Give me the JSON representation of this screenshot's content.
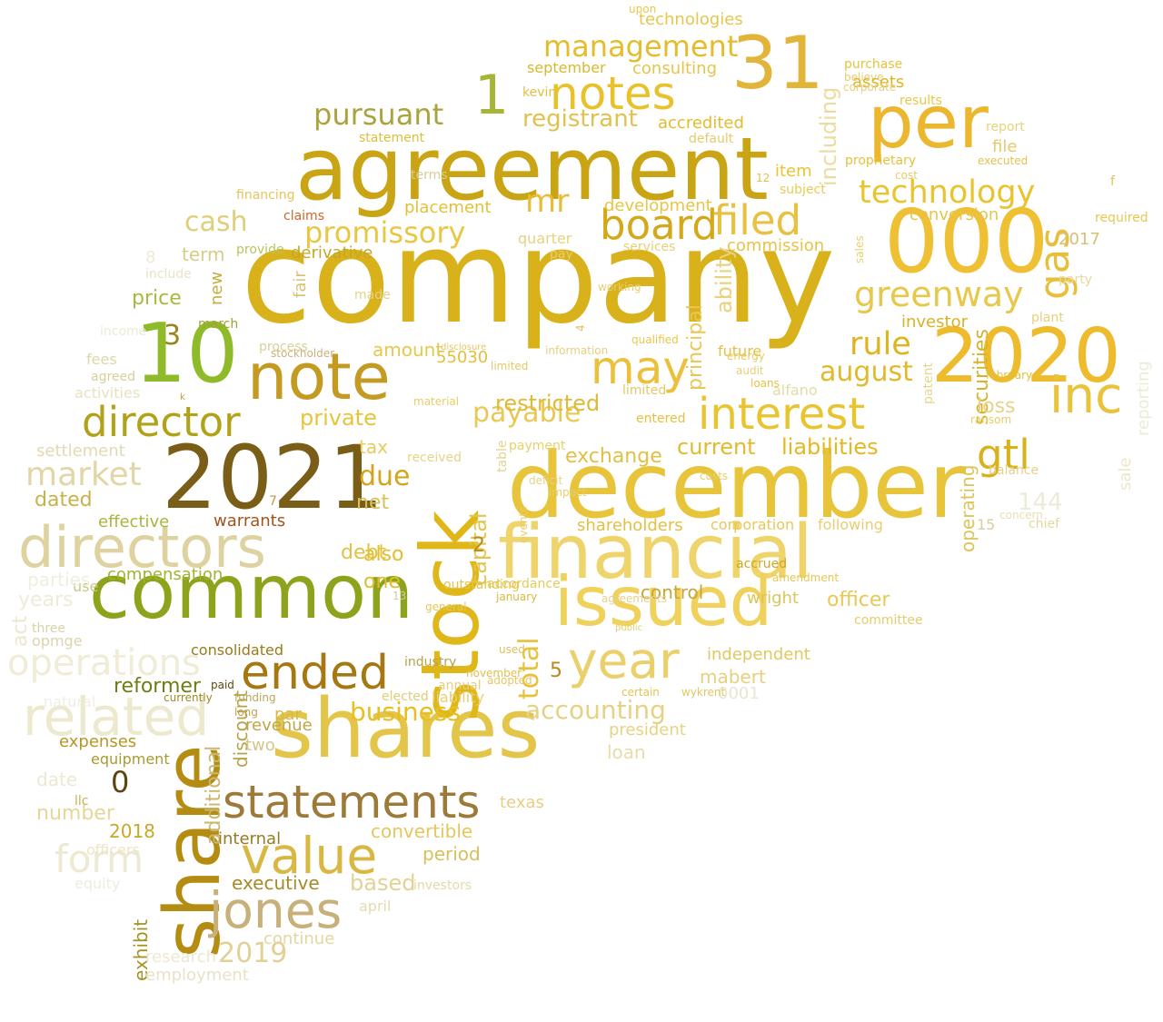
{
  "words": [
    {
      "text": "company",
      "color": "#d9b11a"
    },
    {
      "text": "agreement",
      "color": "#c9a414"
    },
    {
      "text": "december",
      "color": "#e8c43a"
    },
    {
      "text": "shares",
      "color": "#e3c54a"
    },
    {
      "text": "stock",
      "color": "#e0b719"
    },
    {
      "text": "financial",
      "color": "#efd36b"
    },
    {
      "text": "2021",
      "color": "#7a5d16"
    },
    {
      "text": "000",
      "color": "#efc033"
    },
    {
      "text": "common",
      "color": "#8ea31c"
    },
    {
      "text": "2020",
      "color": "#eebb2c"
    },
    {
      "text": "per",
      "color": "#ebb72f"
    },
    {
      "text": "issued",
      "color": "#efd15c"
    },
    {
      "text": "note",
      "color": "#c39a22"
    },
    {
      "text": "share",
      "color": "#b58c12"
    },
    {
      "text": "10",
      "color": "#8fbb2a"
    },
    {
      "text": "31",
      "color": "#e3b43a"
    },
    {
      "text": "directors",
      "color": "#ded3a0"
    },
    {
      "text": "related",
      "color": "#ece9cf"
    },
    {
      "text": "statements",
      "color": "#9c7a3a"
    },
    {
      "text": "ended",
      "color": "#a57812"
    },
    {
      "text": "notes",
      "color": "#e8c22b"
    },
    {
      "text": "board",
      "color": "#d3a91a"
    },
    {
      "text": "filed",
      "color": "#e8c140"
    },
    {
      "text": "year",
      "color": "#ead06a"
    },
    {
      "text": "may",
      "color": "#ebc13c"
    },
    {
      "text": "inc",
      "color": "#e8c33c"
    },
    {
      "text": "value",
      "color": "#d8b842"
    },
    {
      "text": "jones",
      "color": "#c7b07a"
    },
    {
      "text": "interest",
      "color": "#e8c430"
    },
    {
      "text": "director",
      "color": "#b1a219"
    },
    {
      "text": "technology",
      "color": "#e8c530"
    },
    {
      "text": "gas",
      "color": "#e8bf3a"
    },
    {
      "text": "gtl",
      "color": "#d8b21a"
    },
    {
      "text": "greenway",
      "color": "#e8c84a"
    },
    {
      "text": "operations",
      "color": "#f0ecd8"
    },
    {
      "text": "form",
      "color": "#ede9d3"
    },
    {
      "text": "market",
      "color": "#e2d6a7"
    },
    {
      "text": "promissory",
      "color": "#e8c743"
    },
    {
      "text": "management",
      "color": "#e4bd2c"
    },
    {
      "text": "pursuant",
      "color": "#a9a43e"
    },
    {
      "text": "registrant",
      "color": "#e3c14d"
    },
    {
      "text": "cash",
      "color": "#e0cf7a"
    },
    {
      "text": "mr",
      "color": "#e9bc36"
    },
    {
      "text": "rule",
      "color": "#e0b41f"
    },
    {
      "text": "august",
      "color": "#e1ba2a"
    },
    {
      "text": "payable",
      "color": "#e8c955"
    },
    {
      "text": "accounting",
      "color": "#e6d286"
    },
    {
      "text": "business",
      "color": "#e8bf1e"
    },
    {
      "text": "total",
      "color": "#e8c13a"
    },
    {
      "text": "capital",
      "color": "#e2c650"
    },
    {
      "text": "2019",
      "color": "#e2d196"
    },
    {
      "text": "0",
      "color": "#5a4410"
    },
    {
      "text": "1",
      "color": "#a6b634"
    },
    {
      "text": "3",
      "color": "#9a8518"
    },
    {
      "text": "2",
      "color": "#c08a16"
    },
    {
      "text": "5",
      "color": "#b88a1b"
    },
    {
      "text": "7",
      "color": "#c09a48"
    },
    {
      "text": "8",
      "color": "#eeebd8"
    },
    {
      "text": "13",
      "color": "#d4cc9e"
    },
    {
      "text": "15",
      "color": "#d8cf9a"
    },
    {
      "text": "144",
      "color": "#ecebd8"
    },
    {
      "text": "2017",
      "color": "#d5c07a"
    },
    {
      "text": "2018",
      "color": "#c8a82a"
    },
    {
      "text": "55030",
      "color": "#e3bf3b"
    },
    {
      "text": "0001",
      "color": "#e8e6d2"
    },
    {
      "text": "including",
      "color": "#ecdca0"
    },
    {
      "text": "reporting",
      "color": "#ecebd6"
    },
    {
      "text": "securities",
      "color": "#d6b32c"
    },
    {
      "text": "operating",
      "color": "#dcc45a"
    },
    {
      "text": "ability",
      "color": "#e8d27a"
    },
    {
      "text": "principal",
      "color": "#e8c752"
    },
    {
      "text": "additional",
      "color": "#c9b76e"
    },
    {
      "text": "exhibit",
      "color": "#a39322"
    },
    {
      "text": "sale",
      "color": "#ece7ca"
    },
    {
      "text": "loss",
      "color": "#e7d28e"
    },
    {
      "text": "liabilities",
      "color": "#e3b823"
    },
    {
      "text": "current",
      "color": "#e3ba2c"
    },
    {
      "text": "private",
      "color": "#e8c43a"
    },
    {
      "text": "restricted",
      "color": "#e0ba36"
    },
    {
      "text": "amount",
      "color": "#e8c84b"
    },
    {
      "text": "due",
      "color": "#d4a51c"
    },
    {
      "text": "debt",
      "color": "#e2c245"
    },
    {
      "text": "net",
      "color": "#d9c15a"
    },
    {
      "text": "tax",
      "color": "#e8cb5e"
    },
    {
      "text": "also",
      "color": "#e2bf2c"
    },
    {
      "text": "one",
      "color": "#e1bd2c"
    },
    {
      "text": "exchange",
      "color": "#e2c044"
    },
    {
      "text": "shareholders",
      "color": "#e2bf45"
    },
    {
      "text": "corporation",
      "color": "#e9c75a"
    },
    {
      "text": "following",
      "color": "#e8cd72"
    },
    {
      "text": "officer",
      "color": "#e8c952"
    },
    {
      "text": "control",
      "color": "#c8a53a"
    },
    {
      "text": "wright",
      "color": "#dcc45a"
    },
    {
      "text": "independent",
      "color": "#e2c860"
    },
    {
      "text": "mabert",
      "color": "#e7d07e"
    },
    {
      "text": "president",
      "color": "#e8d382"
    },
    {
      "text": "loan",
      "color": "#e8dcaa"
    },
    {
      "text": "texas",
      "color": "#e6cf84"
    },
    {
      "text": "convertible",
      "color": "#e6c65c"
    },
    {
      "text": "period",
      "color": "#d8bf5c"
    },
    {
      "text": "based",
      "color": "#e3d295"
    },
    {
      "text": "executive",
      "color": "#a58a2a"
    },
    {
      "text": "internal",
      "color": "#9a7a22"
    },
    {
      "text": "continue",
      "color": "#e4d69e"
    },
    {
      "text": "employment",
      "color": "#e7e2c8"
    },
    {
      "text": "research",
      "color": "#ede8d2"
    },
    {
      "text": "april",
      "color": "#e4dcae"
    },
    {
      "text": "investors",
      "color": "#e4d9a8"
    },
    {
      "text": "elected",
      "color": "#e2cc76"
    },
    {
      "text": "liability",
      "color": "#e6cf74"
    },
    {
      "text": "par",
      "color": "#d9b84a"
    },
    {
      "text": "revenue",
      "color": "#c0a648"
    },
    {
      "text": "discount",
      "color": "#b8a24a"
    },
    {
      "text": "two",
      "color": "#d6c48a"
    },
    {
      "text": "consolidated",
      "color": "#9a7a1a"
    },
    {
      "text": "reformer",
      "color": "#6e7e12"
    },
    {
      "text": "paid",
      "color": "#5a4a10"
    },
    {
      "text": "currently",
      "color": "#9a8a24"
    },
    {
      "text": "funding",
      "color": "#b8a65c"
    },
    {
      "text": "long",
      "color": "#c0a050"
    },
    {
      "text": "expenses",
      "color": "#b89624"
    },
    {
      "text": "equipment",
      "color": "#a89a32"
    },
    {
      "text": "number",
      "color": "#e7d698"
    },
    {
      "text": "llc",
      "color": "#c9b15a"
    },
    {
      "text": "officers",
      "color": "#ece6c6"
    },
    {
      "text": "dated",
      "color": "#c8b24a"
    },
    {
      "text": "effective",
      "color": "#aab53c"
    },
    {
      "text": "compensation",
      "color": "#a0b332"
    },
    {
      "text": "warrants",
      "color": "#a5531b"
    },
    {
      "text": "settlement",
      "color": "#e1dab4"
    },
    {
      "text": "activities",
      "color": "#e7e3c0"
    },
    {
      "text": "agreed",
      "color": "#d7d098"
    },
    {
      "text": "fees",
      "color": "#dcd8a8"
    },
    {
      "text": "price",
      "color": "#a8ba3e"
    },
    {
      "text": "new",
      "color": "#c3ae40"
    },
    {
      "text": "term",
      "color": "#d7cc88"
    },
    {
      "text": "include",
      "color": "#e7e3c9"
    },
    {
      "text": "provide",
      "color": "#b8c55c"
    },
    {
      "text": "claims",
      "color": "#c9672a"
    },
    {
      "text": "derivative",
      "color": "#c5a82a"
    },
    {
      "text": "fair",
      "color": "#d8c374"
    },
    {
      "text": "made",
      "color": "#e5d288"
    },
    {
      "text": "process",
      "color": "#d9d09a"
    },
    {
      "text": "stockholder",
      "color": "#c9b27a"
    },
    {
      "text": "march",
      "color": "#9fa235"
    },
    {
      "text": "income",
      "color": "#ecebd4"
    },
    {
      "text": "use",
      "color": "#c9c88a"
    },
    {
      "text": "three",
      "color": "#d8d3a8"
    },
    {
      "text": "opmge",
      "color": "#dad5ad"
    },
    {
      "text": "industry",
      "color": "#b8a24c"
    },
    {
      "text": "years",
      "color": "#eeebd8"
    },
    {
      "text": "act",
      "color": "#ece8d0"
    },
    {
      "text": "parties",
      "color": "#f0eedf"
    },
    {
      "text": "natural",
      "color": "#efeee2"
    },
    {
      "text": "equity",
      "color": "#eeece0"
    },
    {
      "text": "date",
      "color": "#ece8d2"
    },
    {
      "text": "received",
      "color": "#e7d488"
    },
    {
      "text": "payment",
      "color": "#e8d06a"
    },
    {
      "text": "annual",
      "color": "#e6cf7c"
    },
    {
      "text": "placement",
      "color": "#e2c139"
    },
    {
      "text": "development",
      "color": "#e8c448"
    },
    {
      "text": "commission",
      "color": "#e7c446"
    },
    {
      "text": "investor",
      "color": "#d8b229"
    },
    {
      "text": "conversion",
      "color": "#e6c44a"
    },
    {
      "text": "item",
      "color": "#e8c430"
    },
    {
      "text": "purchase",
      "color": "#e6c33a"
    },
    {
      "text": "believe",
      "color": "#e3cd75"
    },
    {
      "text": "results",
      "color": "#e8c845"
    },
    {
      "text": "assets",
      "color": "#ddb424"
    },
    {
      "text": "consulting",
      "color": "#e6c44b"
    },
    {
      "text": "accredited",
      "color": "#e1bd2c"
    },
    {
      "text": "default",
      "color": "#e6cb6a"
    },
    {
      "text": "subject",
      "color": "#e8cb54"
    },
    {
      "text": "proprietary",
      "color": "#e7c13a"
    },
    {
      "text": "cost",
      "color": "#e5cc66"
    },
    {
      "text": "executed",
      "color": "#e3c24d"
    },
    {
      "text": "file",
      "color": "#e6c86e"
    },
    {
      "text": "report",
      "color": "#e8d27c"
    },
    {
      "text": "technologies",
      "color": "#e7c64e"
    },
    {
      "text": "september",
      "color": "#dcb82c"
    },
    {
      "text": "statement",
      "color": "#ddbf3a"
    },
    {
      "text": "kevin",
      "color": "#e2bf45"
    },
    {
      "text": "upon",
      "color": "#e8c64a"
    },
    {
      "text": "financing",
      "color": "#e6c558"
    },
    {
      "text": "terms",
      "color": "#d6ce9a"
    },
    {
      "text": "pay",
      "color": "#e6cd72"
    },
    {
      "text": "services",
      "color": "#e7d07a"
    },
    {
      "text": "quarter",
      "color": "#e7d183"
    },
    {
      "text": "party",
      "color": "#e8d89e"
    },
    {
      "text": "required",
      "color": "#e7c752"
    },
    {
      "text": "plant",
      "color": "#e8d07a"
    },
    {
      "text": "february",
      "color": "#e2c039"
    },
    {
      "text": "ransom",
      "color": "#e7cd6c"
    },
    {
      "text": "balance",
      "color": "#e6d08c"
    },
    {
      "text": "concern",
      "color": "#e9dfae"
    },
    {
      "text": "chief",
      "color": "#e5d79e"
    },
    {
      "text": "alfano",
      "color": "#e5dba6"
    },
    {
      "text": "future",
      "color": "#e2c248"
    },
    {
      "text": "entered",
      "color": "#e7c13b"
    },
    {
      "text": "limited",
      "color": "#e6c868"
    },
    {
      "text": "costs",
      "color": "#e8cf6a"
    },
    {
      "text": "committee",
      "color": "#e8cb6a"
    },
    {
      "text": "patent",
      "color": "#e6d592"
    },
    {
      "text": "audit",
      "color": "#e6cf7a"
    },
    {
      "text": "energy",
      "color": "#e8cb5e"
    },
    {
      "text": "loans",
      "color": "#e3c24a"
    },
    {
      "text": "working",
      "color": "#e8cd70"
    },
    {
      "text": "qualified",
      "color": "#e8c84a"
    },
    {
      "text": "disclosure",
      "color": "#e6c65e"
    },
    {
      "text": "accordance",
      "color": "#e8cb55"
    },
    {
      "text": "outstanding",
      "color": "#e5c448"
    },
    {
      "text": "accrued",
      "color": "#d4a51c"
    },
    {
      "text": "amendment",
      "color": "#e8c64f"
    },
    {
      "text": "certain",
      "color": "#e3c34e"
    },
    {
      "text": "wykrent",
      "color": "#e0c860"
    },
    {
      "text": "events",
      "color": "#e8cc6a"
    },
    {
      "text": "table",
      "color": "#e5d28c"
    },
    {
      "text": "information",
      "color": "#e6d080"
    },
    {
      "text": "january",
      "color": "#d9b83f"
    },
    {
      "text": "agreements",
      "color": "#e5d08a"
    },
    {
      "text": "november",
      "color": "#e1c04f"
    },
    {
      "text": "adopted",
      "color": "#e8c762"
    },
    {
      "text": "used",
      "color": "#e0c05a"
    },
    {
      "text": "general",
      "color": "#e5c95c"
    },
    {
      "text": "public",
      "color": "#e2cc70"
    },
    {
      "text": "impact",
      "color": "#e8cd68"
    },
    {
      "text": "deficit",
      "color": "#e6d284"
    },
    {
      "text": "material",
      "color": "#e8ce68"
    },
    {
      "text": "sales",
      "color": "#e8d070"
    },
    {
      "text": "corporate",
      "color": "#e8d07e"
    },
    {
      "text": "limited2",
      "color": "#e6c868"
    },
    {
      "text": "12",
      "color": "#e2c04a"
    },
    {
      "text": "4",
      "color": "#e0c260"
    },
    {
      "text": "f",
      "color": "#e0c260"
    },
    {
      "text": "k",
      "color": "#b8a03a"
    },
    {
      "text": "g",
      "color": "#d6b13a"
    },
    {
      "text": "9",
      "color": "#ebe7d3"
    }
  ]
}
